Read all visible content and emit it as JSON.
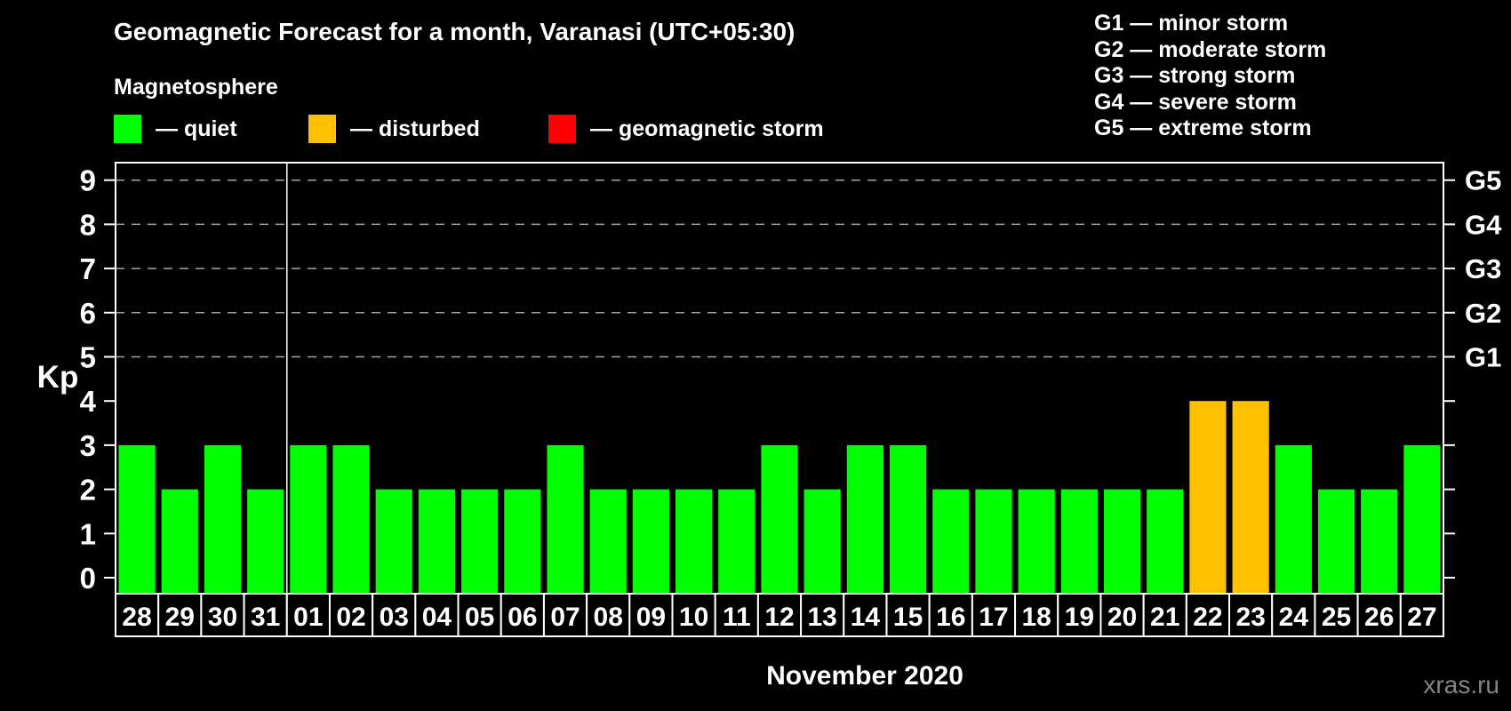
{
  "header": {
    "title": "Geomagnetic Forecast for a month, Varanasi (UTC+05:30)",
    "subtitle": "Magnetosphere",
    "legend": [
      {
        "key": "quiet",
        "label": "— quiet"
      },
      {
        "key": "disturbed",
        "label": "— disturbed"
      },
      {
        "key": "storm",
        "label": "— geomagnetic storm"
      }
    ],
    "g_scale": [
      "G1 — minor storm",
      "G2 — moderate storm",
      "G3 — strong storm",
      "G4 — severe storm",
      "G5 — extreme storm"
    ]
  },
  "footer": {
    "xaxis_title": "November 2020",
    "watermark": "xras.ru"
  },
  "chart_data": {
    "type": "bar",
    "title": "Geomagnetic Forecast for a month, Varanasi (UTC+05:30)",
    "ylabel": "Kp",
    "xlabel": "November 2020",
    "categories": [
      "28",
      "29",
      "30",
      "31",
      "01",
      "02",
      "03",
      "04",
      "05",
      "06",
      "07",
      "08",
      "09",
      "10",
      "11",
      "12",
      "13",
      "14",
      "15",
      "16",
      "17",
      "18",
      "19",
      "20",
      "21",
      "22",
      "23",
      "24",
      "25",
      "26",
      "27"
    ],
    "values": [
      3,
      2,
      3,
      2,
      3,
      3,
      2,
      2,
      2,
      2,
      3,
      2,
      2,
      2,
      2,
      3,
      2,
      3,
      3,
      2,
      2,
      2,
      2,
      2,
      2,
      4,
      4,
      3,
      2,
      2,
      3
    ],
    "statuses": [
      "quiet",
      "quiet",
      "quiet",
      "quiet",
      "quiet",
      "quiet",
      "quiet",
      "quiet",
      "quiet",
      "quiet",
      "quiet",
      "quiet",
      "quiet",
      "quiet",
      "quiet",
      "quiet",
      "quiet",
      "quiet",
      "quiet",
      "quiet",
      "quiet",
      "quiet",
      "quiet",
      "quiet",
      "quiet",
      "disturbed",
      "disturbed",
      "quiet",
      "quiet",
      "quiet",
      "quiet"
    ],
    "status_colors": {
      "quiet": "#00ff00",
      "disturbed": "#ffc000",
      "storm": "#ff0000"
    },
    "ylim": [
      -0.4,
      9.4
    ],
    "yticks": [
      "0",
      "1",
      "2",
      "3",
      "4",
      "5",
      "6",
      "7",
      "8",
      "9"
    ],
    "gridlines": [
      5,
      6,
      7,
      8,
      9
    ],
    "right_axis_labels": [
      {
        "value": 5,
        "label": "G1"
      },
      {
        "value": 6,
        "label": "G2"
      },
      {
        "value": 7,
        "label": "G3"
      },
      {
        "value": 8,
        "label": "G4"
      },
      {
        "value": 9,
        "label": "G5"
      }
    ],
    "month_separator_index": 4,
    "grid": "dashed horizontal lines at storm levels G1–G5",
    "legend_position": "top-left"
  }
}
